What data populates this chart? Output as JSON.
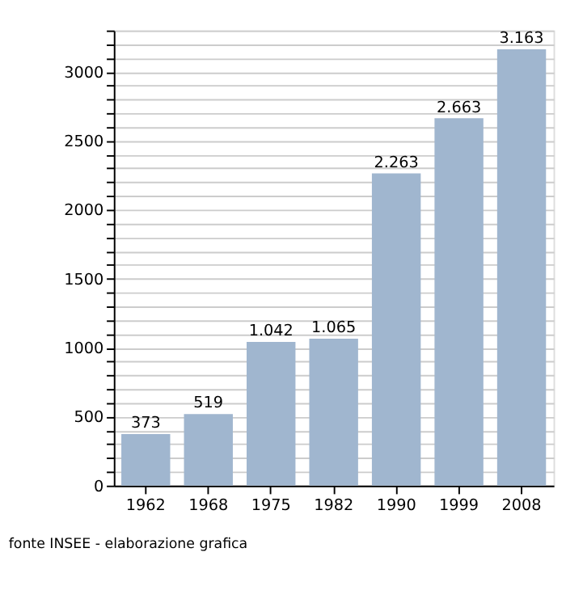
{
  "chart_data": {
    "type": "bar",
    "categories": [
      "1962",
      "1968",
      "1975",
      "1982",
      "1990",
      "1999",
      "2008"
    ],
    "values": [
      373,
      519,
      1042,
      1065,
      2263,
      2663,
      3163
    ],
    "value_labels": [
      "373",
      "519",
      "1.042",
      "1.065",
      "2.263",
      "2.663",
      "3.163"
    ],
    "color": "#a0b6cf",
    "ylim": [
      0,
      3300
    ],
    "yticks": [
      0,
      {
        "value": 100,
        "label": null
      },
      {
        "value": 200,
        "label": null
      },
      {
        "value": 300,
        "label": null
      },
      {
        "value": 400,
        "label": null
      },
      500,
      {
        "value": 600,
        "label": null
      },
      {
        "value": 700,
        "label": null
      },
      {
        "value": 800,
        "label": null
      },
      {
        "value": 900,
        "label": null
      },
      1000,
      {
        "value": 1100,
        "label": null
      },
      {
        "value": 1200,
        "label": null
      },
      {
        "value": 1300,
        "label": null
      },
      {
        "value": 1400,
        "label": null
      },
      1500,
      {
        "value": 1600,
        "label": null
      },
      {
        "value": 1700,
        "label": null
      },
      {
        "value": 1800,
        "label": null
      },
      {
        "value": 1900,
        "label": null
      },
      2000,
      {
        "value": 2100,
        "label": null
      },
      {
        "value": 2200,
        "label": null
      },
      {
        "value": 2300,
        "label": null
      },
      {
        "value": 2400,
        "label": null
      },
      2500,
      {
        "value": 2600,
        "label": null
      },
      {
        "value": 2700,
        "label": null
      },
      {
        "value": 2800,
        "label": null
      },
      {
        "value": 2900,
        "label": null
      },
      3000,
      {
        "value": 3100,
        "label": null
      },
      {
        "value": 3200,
        "label": null
      },
      {
        "value": 3300,
        "label": null
      }
    ],
    "grid": "y",
    "annotations": [
      "fonte INSEE - elaborazione grafica"
    ]
  }
}
